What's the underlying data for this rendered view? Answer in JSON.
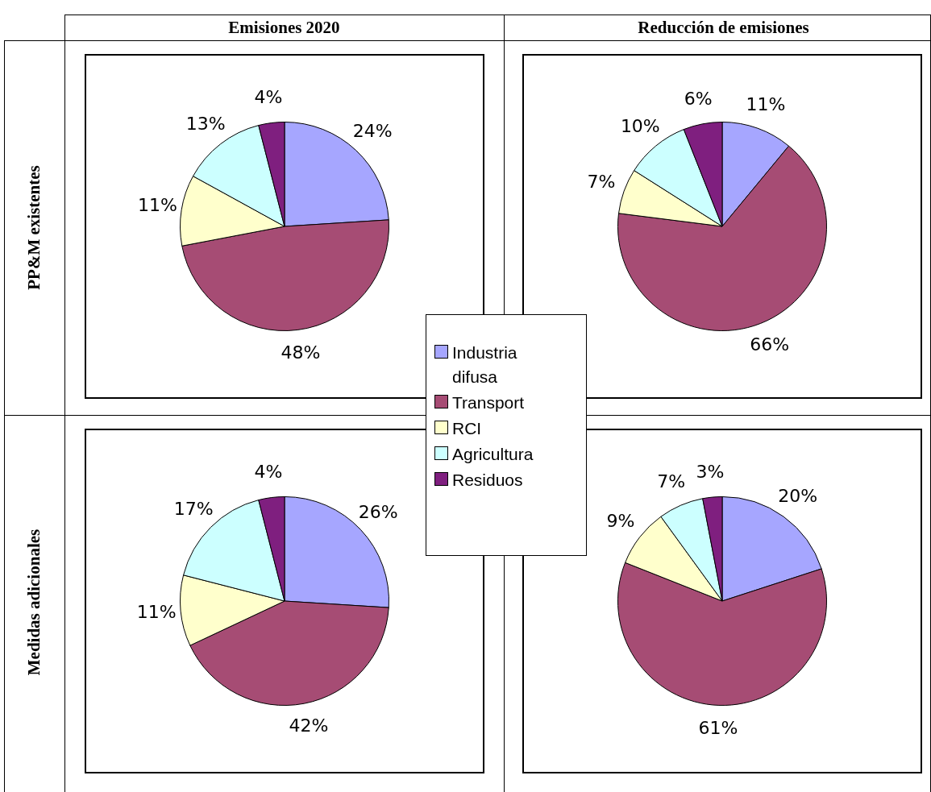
{
  "chart_data": [
    {
      "type": "pie",
      "title": "Emisiones 2020",
      "ylabel": "PP&M existentes",
      "categories": [
        "Industria difusa",
        "Transport",
        "RCI",
        "Agricultura",
        "Residuos"
      ],
      "values": [
        24,
        48,
        11,
        13,
        4
      ],
      "value_labels": [
        "24%",
        "48%",
        "11%",
        "13%",
        "4%"
      ],
      "colors": [
        "#a6a6ff",
        "#a64c74",
        "#ffffcc",
        "#ccffff",
        "#7f1f7f"
      ],
      "legend": "bottom right"
    },
    {
      "type": "pie",
      "title": "Reducción de emisiones",
      "values": [
        11,
        66,
        7,
        10,
        6
      ],
      "value_labels": [
        "11%",
        "66%",
        "7%",
        "10%",
        "6%"
      ],
      "colors": [
        "#a6a6ff",
        "#a64c74",
        "#ffffcc",
        "#ccffff",
        "#7f1f7f"
      ]
    },
    {
      "type": "pie",
      "ylabel": "Medidas adicionales",
      "values": [
        26,
        42,
        11,
        17,
        4
      ],
      "value_labels": [
        "26%",
        "42%",
        "11%",
        "17%",
        "4%"
      ],
      "colors": [
        "#a6a6ff",
        "#a64c74",
        "#ffffcc",
        "#ccffff",
        "#7f1f7f"
      ]
    },
    {
      "type": "pie",
      "values": [
        20,
        61,
        9,
        7,
        3
      ],
      "value_labels": [
        "20%",
        "61%",
        "9%",
        "7%",
        "3%"
      ],
      "colors": [
        "#a6a6ff",
        "#a64c74",
        "#ffffcc",
        "#ccffff",
        "#7f1f7f"
      ]
    }
  ]
}
